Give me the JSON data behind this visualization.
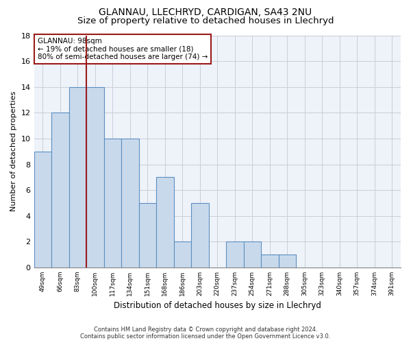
{
  "title1": "GLANNAU, LLECHRYD, CARDIGAN, SA43 2NU",
  "title2": "Size of property relative to detached houses in Llechryd",
  "xlabel": "Distribution of detached houses by size in Llechryd",
  "ylabel": "Number of detached properties",
  "categories": [
    "49sqm",
    "66sqm",
    "83sqm",
    "100sqm",
    "117sqm",
    "134sqm",
    "151sqm",
    "168sqm",
    "186sqm",
    "203sqm",
    "220sqm",
    "237sqm",
    "254sqm",
    "271sqm",
    "288sqm",
    "305sqm",
    "323sqm",
    "340sqm",
    "357sqm",
    "374sqm",
    "391sqm"
  ],
  "values": [
    9,
    12,
    14,
    14,
    10,
    10,
    5,
    7,
    2,
    5,
    0,
    2,
    2,
    1,
    1,
    0,
    0,
    0,
    0,
    0,
    0
  ],
  "bar_color": "#c9d9ec",
  "bar_edge_color": "#5a8fc0",
  "ylim": [
    0,
    18
  ],
  "yticks": [
    0,
    2,
    4,
    6,
    8,
    10,
    12,
    14,
    16,
    18
  ],
  "vline_x_index": 3,
  "vline_color": "#9b1a1a",
  "annotation_text": "GLANNAU: 98sqm\n← 19% of detached houses are smaller (18)\n80% of semi-detached houses are larger (74) →",
  "annotation_box_color": "#9b1a1a",
  "footer": "Contains HM Land Registry data © Crown copyright and database right 2024.\nContains public sector information licensed under the Open Government Licence v3.0.",
  "background_color": "#eef2f9",
  "grid_color": "#c8cdd8",
  "title1_fontsize": 10,
  "title2_fontsize": 9.5,
  "bar_width": 1.0
}
